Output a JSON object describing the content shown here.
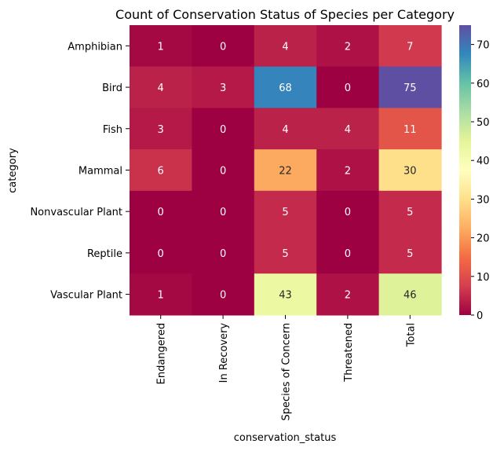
{
  "chart_data": {
    "type": "heatmap",
    "title": "Count of Conservation Status of Species per Category",
    "xlabel": "conservation_status",
    "ylabel": "category",
    "x_categories": [
      "Endangered",
      "In Recovery",
      "Species of Concern",
      "Threatened",
      "Total"
    ],
    "y_categories": [
      "Amphibian",
      "Bird",
      "Fish",
      "Mammal",
      "Nonvascular Plant",
      "Reptile",
      "Vascular Plant"
    ],
    "values": [
      [
        1,
        0,
        4,
        2,
        7
      ],
      [
        4,
        3,
        68,
        0,
        75
      ],
      [
        3,
        0,
        4,
        4,
        11
      ],
      [
        6,
        0,
        22,
        2,
        30
      ],
      [
        0,
        0,
        5,
        0,
        5
      ],
      [
        0,
        0,
        5,
        0,
        5
      ],
      [
        1,
        0,
        43,
        2,
        46
      ]
    ],
    "colormap": "Spectral",
    "value_range": [
      0,
      75
    ],
    "colorbar_ticks": [
      0,
      10,
      20,
      30,
      40,
      50,
      60,
      70
    ],
    "colors": {
      "low": "#9e0142",
      "high": "#5e4fa2",
      "text_light": "#ffffff",
      "text_dark": "#262626"
    }
  }
}
